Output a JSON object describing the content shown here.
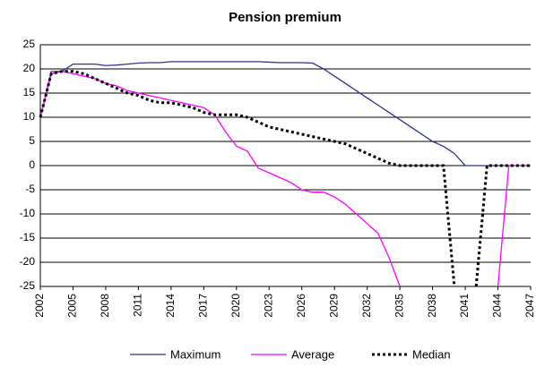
{
  "chart_data": {
    "type": "line",
    "title": "Pension premium",
    "x": [
      2002,
      2003,
      2004,
      2005,
      2006,
      2007,
      2008,
      2009,
      2010,
      2011,
      2012,
      2013,
      2014,
      2015,
      2016,
      2017,
      2018,
      2019,
      2020,
      2021,
      2022,
      2023,
      2024,
      2025,
      2026,
      2027,
      2028,
      2029,
      2030,
      2031,
      2032,
      2033,
      2034,
      2035,
      2036,
      2037,
      2038,
      2039,
      2040,
      2041,
      2042,
      2043,
      2044,
      2045,
      2046,
      2047
    ],
    "series": [
      {
        "name": "Maximum",
        "color": "#2e3192",
        "style": "solid",
        "values": [
          10,
          19,
          19.5,
          21,
          21,
          21,
          20.7,
          20.8,
          21,
          21.2,
          21.3,
          21.3,
          21.5,
          21.5,
          21.5,
          21.5,
          21.5,
          21.5,
          21.5,
          21.5,
          21.5,
          21.4,
          21.3,
          21.3,
          21.3,
          21.2,
          20,
          18.5,
          17,
          15.5,
          14,
          12.5,
          11,
          9.5,
          8,
          6.5,
          5,
          4,
          2.5,
          0,
          0,
          0,
          0,
          0,
          0,
          0
        ]
      },
      {
        "name": "Average",
        "color": "#ff00ff",
        "style": "solid",
        "values": [
          10,
          19.5,
          19.5,
          19,
          18.5,
          18,
          17,
          16.5,
          15.5,
          15,
          14.5,
          14,
          13.5,
          13,
          12.5,
          12,
          10.5,
          7,
          4,
          3,
          -0.5,
          -1.5,
          -2.5,
          -3.5,
          -5,
          -5.5,
          -5.5,
          -6.5,
          -8,
          -10,
          -12,
          -14,
          -19,
          -25,
          null,
          null,
          null,
          null,
          null,
          null,
          null,
          null,
          -25,
          0,
          0,
          0
        ]
      },
      {
        "name": "Median",
        "color": "#000000",
        "style": "dotted",
        "values": [
          10,
          19,
          19.5,
          19.5,
          19,
          18,
          17,
          16,
          15,
          14.5,
          13.5,
          13,
          13,
          12.5,
          12,
          11,
          10.5,
          10.5,
          10.5,
          10,
          9,
          8,
          7.5,
          7,
          6.5,
          6,
          5.5,
          5,
          4.5,
          3.5,
          2.5,
          1.5,
          0.5,
          0,
          0,
          0,
          0,
          0,
          -25,
          null,
          -25,
          0,
          0,
          0,
          0,
          0
        ]
      }
    ],
    "xlim": [
      2002,
      2047
    ],
    "xticks": [
      2002,
      2005,
      2008,
      2011,
      2014,
      2017,
      2020,
      2023,
      2026,
      2029,
      2032,
      2035,
      2038,
      2041,
      2044,
      2047
    ],
    "ylim": [
      -25,
      25
    ],
    "yticks": [
      -25,
      -20,
      -15,
      -10,
      -5,
      0,
      5,
      10,
      15,
      20,
      25
    ],
    "grid": true,
    "legend": "bottom"
  }
}
